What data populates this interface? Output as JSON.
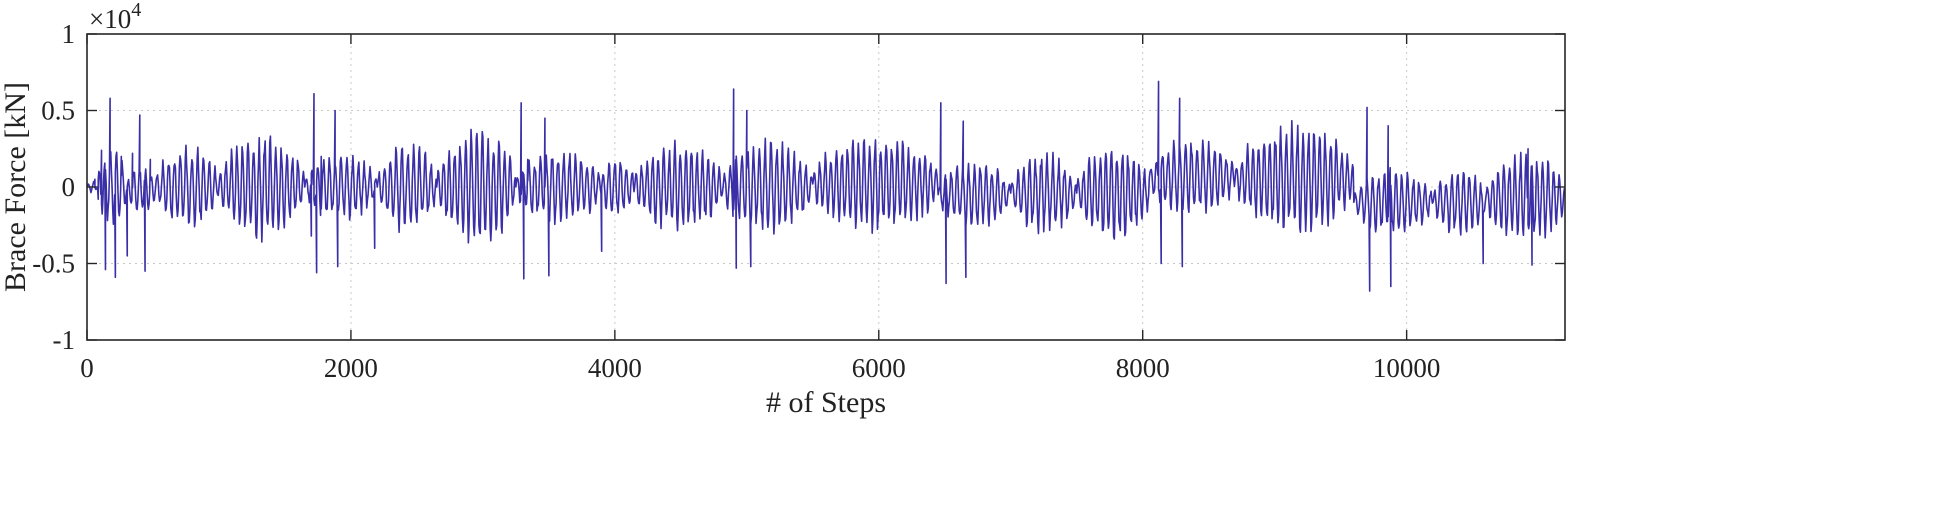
{
  "chart_data": {
    "type": "line",
    "title": "",
    "xlabel": "# of Steps",
    "ylabel": "Brace Force [kN]",
    "y_exponent_label": "×10",
    "y_exponent_power": "4",
    "xlim": [
      0,
      11200
    ],
    "ylim": [
      -1,
      1
    ],
    "x_ticks": [
      0,
      2000,
      4000,
      6000,
      8000,
      10000
    ],
    "x_tick_labels": [
      "0",
      "2000",
      "4000",
      "6000",
      "8000",
      "10000"
    ],
    "y_ticks": [
      1,
      0.5,
      0,
      -0.5,
      -1
    ],
    "y_tick_labels": [
      "1",
      "0.5",
      "0",
      "-0.5",
      "-1"
    ],
    "grid": true,
    "line_color": "#3a2fa6",
    "series": [
      {
        "segments": [
          {
            "start": 0,
            "end": 80,
            "amp": 0.03,
            "bias": 0.0,
            "period": 40
          },
          {
            "start": 80,
            "end": 300,
            "amp": 0.22,
            "bias": 0.0,
            "period": 44
          },
          {
            "start": 300,
            "end": 520,
            "amp": 0.14,
            "bias": -0.02,
            "period": 44
          },
          {
            "start": 520,
            "end": 1000,
            "amp": 0.22,
            "bias": 0.0,
            "period": 44
          },
          {
            "start": 1000,
            "end": 1650,
            "amp": 0.28,
            "bias": 0.0,
            "period": 42
          },
          {
            "start": 1650,
            "end": 2200,
            "amp": 0.18,
            "bias": 0.0,
            "period": 44
          },
          {
            "start": 2200,
            "end": 2650,
            "amp": 0.24,
            "bias": 0.0,
            "period": 44
          },
          {
            "start": 2650,
            "end": 3250,
            "amp": 0.32,
            "bias": 0.0,
            "period": 42
          },
          {
            "start": 3250,
            "end": 3900,
            "amp": 0.2,
            "bias": 0.0,
            "period": 44
          },
          {
            "start": 3900,
            "end": 4150,
            "amp": 0.17,
            "bias": 0.0,
            "period": 44
          },
          {
            "start": 4150,
            "end": 4820,
            "amp": 0.24,
            "bias": 0.0,
            "period": 42
          },
          {
            "start": 4820,
            "end": 5500,
            "amp": 0.25,
            "bias": 0.0,
            "period": 44
          },
          {
            "start": 5500,
            "end": 6450,
            "amp": 0.27,
            "bias": 0.02,
            "period": 42
          },
          {
            "start": 6450,
            "end": 7000,
            "amp": 0.18,
            "bias": -0.05,
            "period": 44
          },
          {
            "start": 7000,
            "end": 7500,
            "amp": 0.22,
            "bias": -0.04,
            "period": 44
          },
          {
            "start": 7500,
            "end": 8050,
            "amp": 0.26,
            "bias": -0.04,
            "period": 42
          },
          {
            "start": 8050,
            "end": 8700,
            "amp": 0.22,
            "bias": 0.06,
            "period": 44
          },
          {
            "start": 8700,
            "end": 9600,
            "amp": 0.3,
            "bias": 0.05,
            "period": 42
          },
          {
            "start": 9600,
            "end": 10200,
            "amp": 0.18,
            "bias": -0.1,
            "period": 44
          },
          {
            "start": 10200,
            "end": 10600,
            "amp": 0.18,
            "bias": -0.1,
            "period": 44
          },
          {
            "start": 10600,
            "end": 11200,
            "amp": 0.25,
            "bias": -0.07,
            "period": 42
          }
        ],
        "spikes": [
          {
            "x": 60,
            "y": 0.05
          },
          {
            "x": 85,
            "y": -0.08
          },
          {
            "x": 110,
            "y": 0.24
          },
          {
            "x": 140,
            "y": -0.54
          },
          {
            "x": 175,
            "y": 0.58
          },
          {
            "x": 215,
            "y": -0.59
          },
          {
            "x": 260,
            "y": 0.2
          },
          {
            "x": 305,
            "y": -0.45
          },
          {
            "x": 345,
            "y": 0.22
          },
          {
            "x": 400,
            "y": 0.47
          },
          {
            "x": 440,
            "y": -0.55
          },
          {
            "x": 480,
            "y": 0.18
          },
          {
            "x": 1700,
            "y": -0.32
          },
          {
            "x": 1720,
            "y": 0.61
          },
          {
            "x": 1740,
            "y": -0.56
          },
          {
            "x": 1775,
            "y": 0.2
          },
          {
            "x": 1880,
            "y": 0.5
          },
          {
            "x": 1900,
            "y": -0.52
          },
          {
            "x": 2180,
            "y": -0.4
          },
          {
            "x": 3290,
            "y": 0.55
          },
          {
            "x": 3310,
            "y": -0.6
          },
          {
            "x": 3340,
            "y": 0.18
          },
          {
            "x": 3470,
            "y": 0.45
          },
          {
            "x": 3500,
            "y": -0.58
          },
          {
            "x": 3900,
            "y": -0.42
          },
          {
            "x": 4900,
            "y": 0.64
          },
          {
            "x": 4920,
            "y": -0.53
          },
          {
            "x": 5000,
            "y": 0.5
          },
          {
            "x": 5030,
            "y": -0.52
          },
          {
            "x": 6470,
            "y": 0.55
          },
          {
            "x": 6510,
            "y": -0.63
          },
          {
            "x": 6640,
            "y": 0.43
          },
          {
            "x": 6660,
            "y": -0.59
          },
          {
            "x": 8120,
            "y": 0.69
          },
          {
            "x": 8140,
            "y": -0.5
          },
          {
            "x": 8280,
            "y": 0.58
          },
          {
            "x": 8300,
            "y": -0.52
          },
          {
            "x": 9700,
            "y": 0.52
          },
          {
            "x": 9720,
            "y": -0.68
          },
          {
            "x": 9860,
            "y": 0.4
          },
          {
            "x": 9880,
            "y": -0.65
          },
          {
            "x": 10580,
            "y": -0.5
          },
          {
            "x": 10920,
            "y": 0.25
          },
          {
            "x": 10950,
            "y": -0.51
          }
        ]
      }
    ]
  }
}
